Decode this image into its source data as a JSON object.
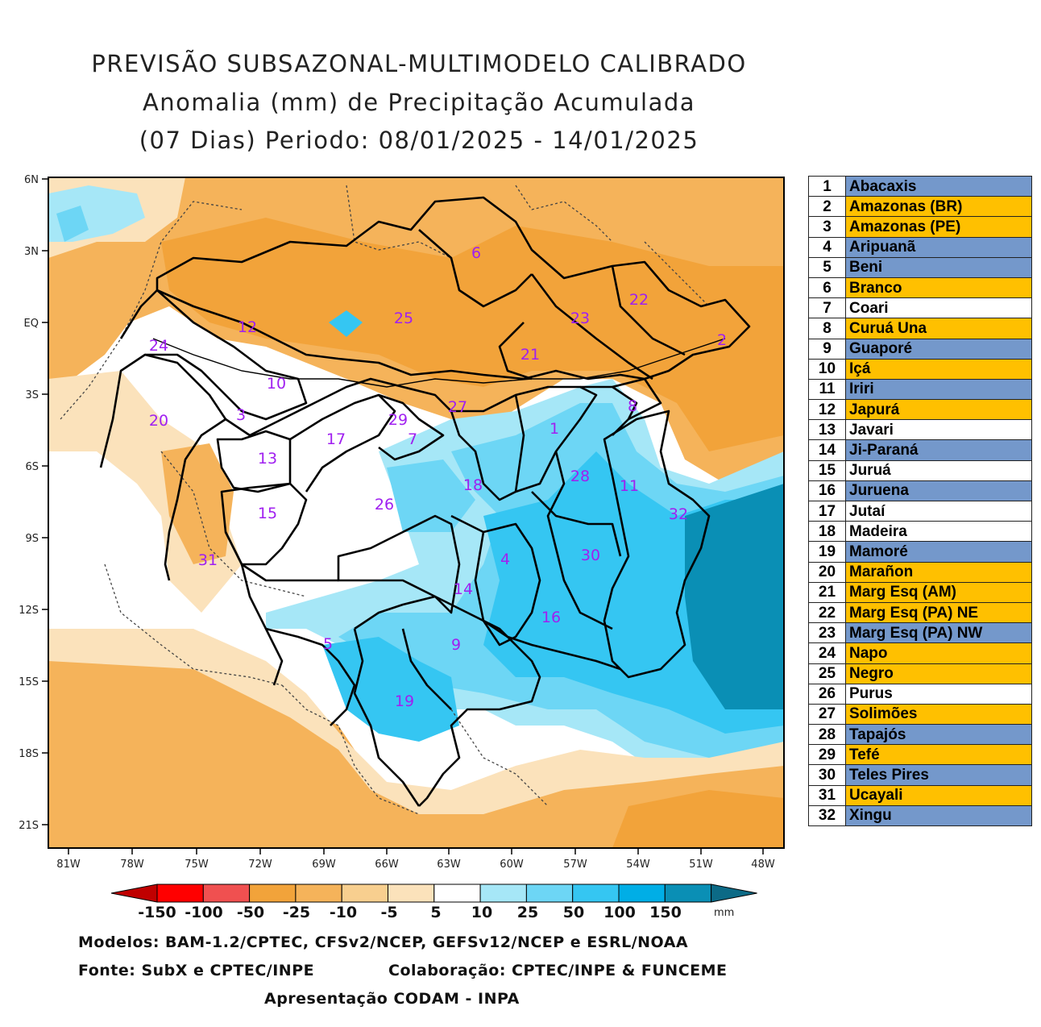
{
  "title": {
    "line1": "PREVISÃO SUBSAZONAL-MULTIMODELO CALIBRADO",
    "line2": "Anomalia (mm) de Precipitação Acumulada",
    "line3": "(07 Dias) Periodo: 08/01/2025 - 14/01/2025"
  },
  "axes": {
    "lat_labels": [
      "6N",
      "3N",
      "EQ",
      "3S",
      "6S",
      "9S",
      "12S",
      "15S",
      "18S",
      "21S"
    ],
    "lon_labels": [
      "81W",
      "78W",
      "75W",
      "72W",
      "69W",
      "66W",
      "63W",
      "60W",
      "57W",
      "54W",
      "51W",
      "48W"
    ]
  },
  "colorbar": {
    "labels": [
      "-150",
      "-100",
      "-50",
      "-25",
      "-10",
      "-5",
      "5",
      "10",
      "25",
      "50",
      "100",
      "150"
    ],
    "unit": "mm",
    "colors": [
      "#c00000",
      "#ff0000",
      "#f05050",
      "#f2a33a",
      "#f5b35a",
      "#f8cf8f",
      "#fbe2bb",
      "#ffffff",
      "#a6e7f7",
      "#6dd6f5",
      "#35c6f2",
      "#00aee6",
      "#0a8fb5",
      "#0c6a86"
    ]
  },
  "basin_labels": [
    "1",
    "2",
    "3",
    "4",
    "5",
    "6",
    "7",
    "8",
    "9",
    "10",
    "11",
    "12",
    "13",
    "14",
    "15",
    "16",
    "17",
    "18",
    "19",
    "20",
    "21",
    "22",
    "23",
    "24",
    "25",
    "26",
    "27",
    "28",
    "29",
    "30",
    "31",
    "32"
  ],
  "legend": {
    "colors": {
      "blue": "#7498cb",
      "orange": "#ffc000",
      "white": "#ffffff"
    },
    "items": [
      {
        "num": "1",
        "name": "Abacaxis",
        "color": "blue"
      },
      {
        "num": "2",
        "name": "Amazonas (BR)",
        "color": "orange"
      },
      {
        "num": "3",
        "name": "Amazonas (PE)",
        "color": "orange"
      },
      {
        "num": "4",
        "name": "Aripuanã",
        "color": "blue"
      },
      {
        "num": "5",
        "name": "Beni",
        "color": "blue"
      },
      {
        "num": "6",
        "name": "Branco",
        "color": "orange"
      },
      {
        "num": "7",
        "name": "Coari",
        "color": "white"
      },
      {
        "num": "8",
        "name": "Curuá Una",
        "color": "orange"
      },
      {
        "num": "9",
        "name": "Guaporé",
        "color": "blue"
      },
      {
        "num": "10",
        "name": "Içá",
        "color": "orange"
      },
      {
        "num": "11",
        "name": "Iriri",
        "color": "blue"
      },
      {
        "num": "12",
        "name": "Japurá",
        "color": "orange"
      },
      {
        "num": "13",
        "name": "Javari",
        "color": "white"
      },
      {
        "num": "14",
        "name": "Ji-Paraná",
        "color": "blue"
      },
      {
        "num": "15",
        "name": "Juruá",
        "color": "white"
      },
      {
        "num": "16",
        "name": "Juruena",
        "color": "blue"
      },
      {
        "num": "17",
        "name": "Jutaí",
        "color": "white"
      },
      {
        "num": "18",
        "name": "Madeira",
        "color": "white"
      },
      {
        "num": "19",
        "name": "Mamoré",
        "color": "blue"
      },
      {
        "num": "20",
        "name": "Marañon",
        "color": "orange"
      },
      {
        "num": "21",
        "name": "Marg Esq (AM)",
        "color": "orange"
      },
      {
        "num": "22",
        "name": "Marg Esq (PA) NE",
        "color": "orange"
      },
      {
        "num": "23",
        "name": "Marg Esq (PA) NW",
        "color": "blue"
      },
      {
        "num": "24",
        "name": "Napo",
        "color": "orange"
      },
      {
        "num": "25",
        "name": "Negro",
        "color": "orange"
      },
      {
        "num": "26",
        "name": "Purus",
        "color": "white"
      },
      {
        "num": "27",
        "name": "Solimões",
        "color": "orange"
      },
      {
        "num": "28",
        "name": "Tapajós",
        "color": "blue"
      },
      {
        "num": "29",
        "name": "Tefé",
        "color": "orange"
      },
      {
        "num": "30",
        "name": "Teles Pires",
        "color": "blue"
      },
      {
        "num": "31",
        "name": "Ucayali",
        "color": "orange"
      },
      {
        "num": "32",
        "name": "Xingu",
        "color": "blue"
      }
    ]
  },
  "footer": {
    "models": "Modelos: BAM-1.2/CPTEC, CFSv2/NCEP, GEFSv12/NCEP e ESRL/NOAA",
    "source": "Fonte: SubX e CPTEC/INPE",
    "collab": "Colaboração: CPTEC/INPE & FUNCEME",
    "presentation": "Apresentação CODAM - INPA"
  }
}
